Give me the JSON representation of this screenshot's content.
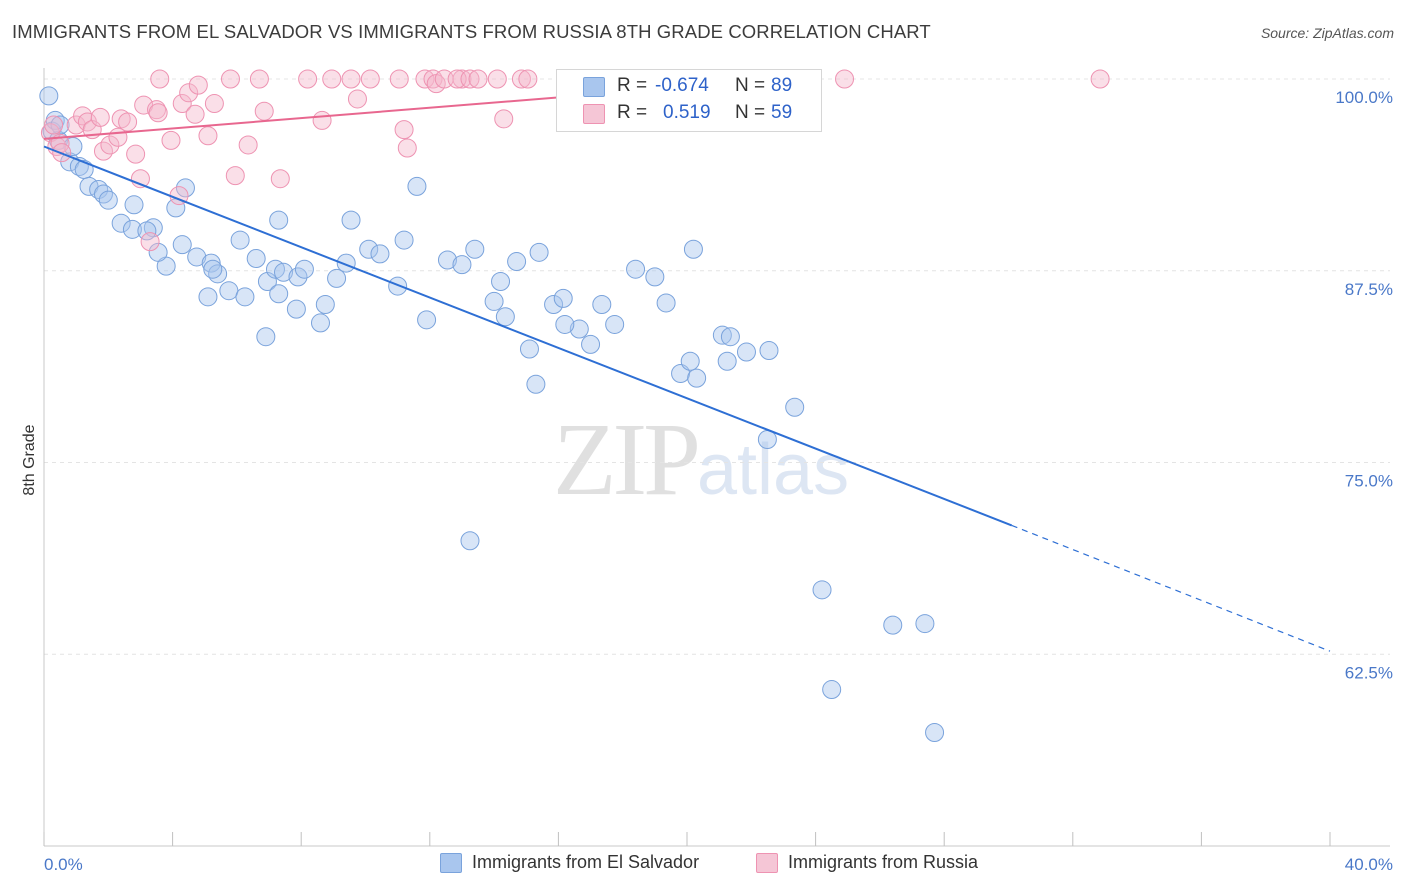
{
  "header": {
    "title": "IMMIGRANTS FROM EL SALVADOR VS IMMIGRANTS FROM RUSSIA 8TH GRADE CORRELATION CHART",
    "source": "Source: ZipAtlas.com"
  },
  "stats": {
    "rows": [
      {
        "r_label": "R =",
        "r_value": "-0.674",
        "n_label": "N =",
        "n_value": "89"
      },
      {
        "r_label": "R =",
        "r_value": "0.519",
        "n_label": "N =",
        "n_value": "59"
      }
    ]
  },
  "legend": {
    "items": [
      {
        "label": "Immigrants from El Salvador"
      },
      {
        "label": "Immigrants from Russia"
      }
    ]
  },
  "watermark": {
    "zip": "ZIP",
    "atlas": "atlas"
  },
  "colors": {
    "blue_fill": "#a9c6ee",
    "blue_stroke": "#7aa3dc",
    "blue_line": "#2e6fd4",
    "pink_fill": "#f5b8cc",
    "pink_stroke": "#ee93b2",
    "pink_line": "#e8678f",
    "grid": "#e4e4e4",
    "axis_label": "#4a78c8"
  },
  "chart_data": {
    "type": "scatter",
    "title": "IMMIGRANTS FROM EL SALVADOR VS IMMIGRANTS FROM RUSSIA 8TH GRADE CORRELATION CHART",
    "xlabel": "",
    "ylabel": "8th Grade",
    "xlim": [
      0,
      40
    ],
    "ylim": [
      50,
      100
    ],
    "x_tick_labels": [
      "0.0%",
      "40.0%"
    ],
    "y_ticks": [
      62.5,
      75.0,
      87.5,
      100.0
    ],
    "y_tick_labels": [
      "62.5%",
      "75.0%",
      "87.5%",
      "100.0%"
    ],
    "grid": true,
    "legend_position": "bottom",
    "series": [
      {
        "name": "Immigrants from El Salvador",
        "color": "blue",
        "r": -0.674,
        "n": 89,
        "trend": {
          "x0": 0,
          "y0": 95.6,
          "x1": 30.1,
          "y1": 70.9,
          "dashed_to_x": 40,
          "dashed_to_y": 62.7
        },
        "points": [
          [
            0.15,
            98.9
          ],
          [
            0.25,
            96.6
          ],
          [
            0.35,
            97.3
          ],
          [
            0.45,
            96.0
          ],
          [
            0.5,
            97.0
          ],
          [
            0.8,
            94.6
          ],
          [
            0.9,
            95.6
          ],
          [
            1.1,
            94.3
          ],
          [
            1.25,
            94.1
          ],
          [
            1.4,
            93.0
          ],
          [
            1.7,
            92.8
          ],
          [
            1.85,
            92.5
          ],
          [
            2.0,
            92.1
          ],
          [
            2.4,
            90.6
          ],
          [
            2.8,
            91.8
          ],
          [
            2.75,
            90.2
          ],
          [
            3.4,
            90.3
          ],
          [
            3.2,
            90.1
          ],
          [
            3.8,
            87.8
          ],
          [
            3.55,
            88.7
          ],
          [
            4.1,
            91.6
          ],
          [
            4.4,
            92.9
          ],
          [
            4.3,
            89.2
          ],
          [
            4.75,
            88.4
          ],
          [
            5.2,
            88.0
          ],
          [
            5.1,
            85.8
          ],
          [
            5.4,
            87.3
          ],
          [
            5.25,
            87.6
          ],
          [
            5.75,
            86.2
          ],
          [
            6.1,
            89.5
          ],
          [
            6.25,
            85.8
          ],
          [
            6.6,
            88.3
          ],
          [
            6.95,
            86.8
          ],
          [
            6.9,
            83.2
          ],
          [
            7.2,
            87.6
          ],
          [
            7.3,
            86.0
          ],
          [
            7.3,
            90.8
          ],
          [
            7.45,
            87.4
          ],
          [
            7.85,
            85.0
          ],
          [
            7.9,
            87.1
          ],
          [
            8.1,
            87.6
          ],
          [
            8.6,
            84.1
          ],
          [
            9.4,
            88.0
          ],
          [
            9.1,
            87.0
          ],
          [
            8.75,
            85.3
          ],
          [
            9.55,
            90.8
          ],
          [
            10.1,
            88.9
          ],
          [
            10.45,
            88.6
          ],
          [
            11.0,
            86.5
          ],
          [
            11.2,
            89.5
          ],
          [
            11.6,
            93.0
          ],
          [
            11.9,
            84.3
          ],
          [
            12.55,
            88.2
          ],
          [
            13.0,
            87.9
          ],
          [
            13.4,
            88.9
          ],
          [
            14.2,
            86.8
          ],
          [
            14.35,
            84.5
          ],
          [
            14.0,
            85.5
          ],
          [
            14.7,
            88.1
          ],
          [
            15.4,
            88.7
          ],
          [
            15.85,
            85.3
          ],
          [
            16.15,
            85.7
          ],
          [
            15.1,
            82.4
          ],
          [
            15.3,
            80.1
          ],
          [
            16.65,
            83.7
          ],
          [
            16.2,
            84.0
          ],
          [
            17.0,
            82.7
          ],
          [
            17.35,
            85.3
          ],
          [
            17.75,
            84.0
          ],
          [
            18.4,
            87.6
          ],
          [
            19.0,
            87.1
          ],
          [
            19.35,
            85.4
          ],
          [
            19.8,
            80.8
          ],
          [
            20.3,
            80.5
          ],
          [
            20.1,
            81.6
          ],
          [
            20.2,
            88.9
          ],
          [
            21.1,
            83.3
          ],
          [
            21.25,
            81.6
          ],
          [
            21.35,
            83.2
          ],
          [
            21.85,
            82.2
          ],
          [
            22.5,
            76.5
          ],
          [
            22.55,
            82.3
          ],
          [
            23.35,
            78.6
          ],
          [
            24.2,
            66.7
          ],
          [
            26.4,
            64.4
          ],
          [
            27.4,
            64.5
          ],
          [
            24.5,
            60.2
          ],
          [
            27.7,
            57.4
          ],
          [
            13.25,
            69.9
          ]
        ]
      },
      {
        "name": "Immigrants from Russia",
        "color": "pink",
        "r": 0.519,
        "n": 59,
        "trend": {
          "x0": 0,
          "y0": 96.1,
          "x1": 23.1,
          "y1": 100.0
        },
        "points": [
          [
            0.2,
            96.5
          ],
          [
            0.3,
            97.0
          ],
          [
            0.4,
            95.6
          ],
          [
            0.5,
            95.8
          ],
          [
            0.55,
            95.2
          ],
          [
            1.0,
            97.0
          ],
          [
            1.2,
            97.6
          ],
          [
            1.35,
            97.2
          ],
          [
            1.5,
            96.7
          ],
          [
            1.75,
            97.5
          ],
          [
            1.85,
            95.3
          ],
          [
            2.05,
            95.7
          ],
          [
            2.3,
            96.2
          ],
          [
            2.4,
            97.4
          ],
          [
            2.6,
            97.2
          ],
          [
            2.85,
            95.1
          ],
          [
            3.0,
            93.5
          ],
          [
            3.1,
            98.3
          ],
          [
            3.3,
            89.4
          ],
          [
            3.5,
            98.0
          ],
          [
            3.55,
            97.8
          ],
          [
            3.95,
            96.0
          ],
          [
            3.6,
            100.0
          ],
          [
            4.2,
            92.4
          ],
          [
            4.3,
            98.4
          ],
          [
            4.5,
            99.1
          ],
          [
            4.7,
            97.7
          ],
          [
            4.8,
            99.6
          ],
          [
            5.1,
            96.3
          ],
          [
            5.3,
            98.4
          ],
          [
            5.8,
            100.0
          ],
          [
            5.95,
            93.7
          ],
          [
            6.35,
            95.7
          ],
          [
            6.7,
            100.0
          ],
          [
            6.85,
            97.9
          ],
          [
            7.35,
            93.5
          ],
          [
            8.2,
            100.0
          ],
          [
            8.65,
            97.3
          ],
          [
            8.95,
            100.0
          ],
          [
            9.55,
            100.0
          ],
          [
            9.75,
            98.7
          ],
          [
            10.15,
            100.0
          ],
          [
            11.05,
            100.0
          ],
          [
            11.2,
            96.7
          ],
          [
            11.3,
            95.5
          ],
          [
            11.85,
            100.0
          ],
          [
            12.1,
            100.0
          ],
          [
            12.2,
            99.7
          ],
          [
            12.45,
            100.0
          ],
          [
            13.0,
            100.0
          ],
          [
            12.85,
            100.0
          ],
          [
            13.25,
            100.0
          ],
          [
            13.5,
            100.0
          ],
          [
            14.3,
            97.4
          ],
          [
            14.1,
            100.0
          ],
          [
            14.85,
            100.0
          ],
          [
            15.05,
            100.0
          ],
          [
            24.9,
            100.0
          ],
          [
            32.85,
            100.0
          ]
        ]
      }
    ]
  }
}
